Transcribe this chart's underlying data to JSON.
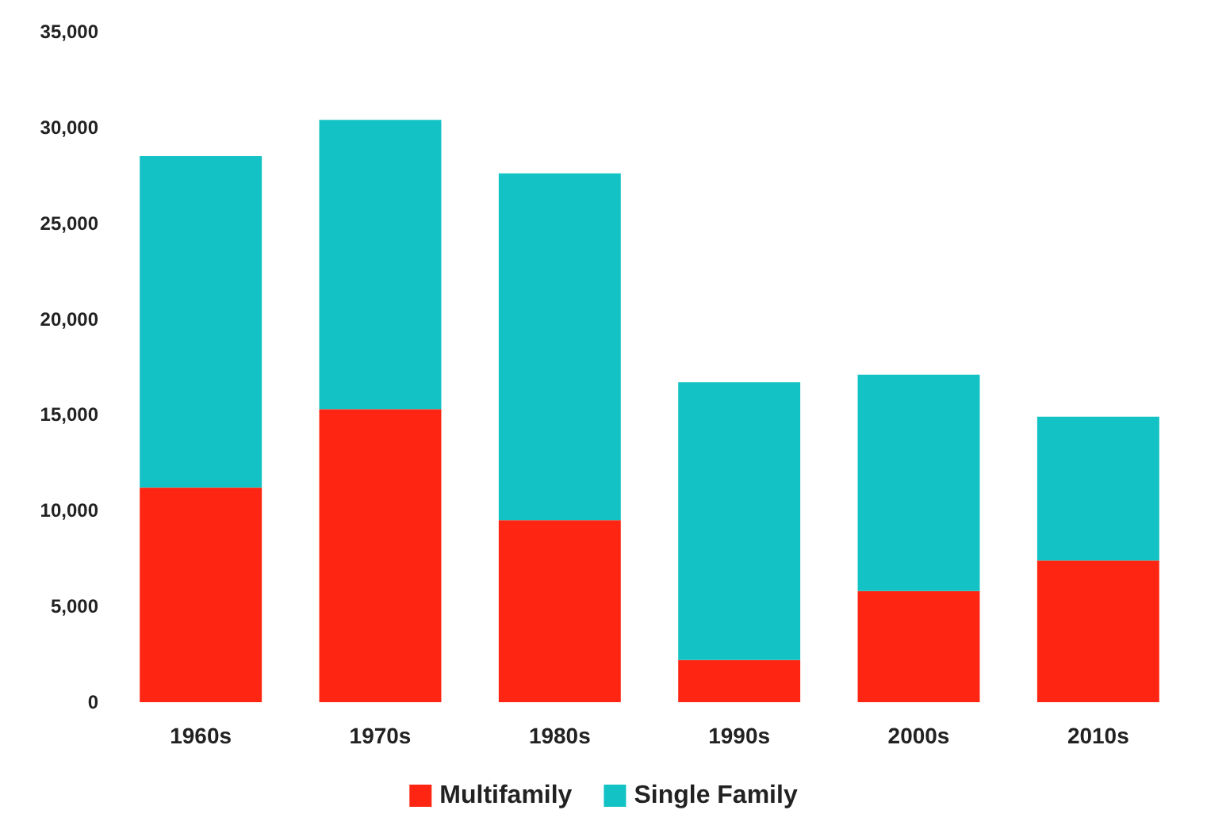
{
  "chart_data": {
    "type": "bar",
    "stacked": true,
    "categories": [
      "1960s",
      "1970s",
      "1980s",
      "1990s",
      "2000s",
      "2010s"
    ],
    "series": [
      {
        "name": "Multifamily",
        "color": "#fe2612",
        "values": [
          11200,
          15300,
          9500,
          2200,
          5800,
          7400
        ]
      },
      {
        "name": "Single Family",
        "color": "#12c2c4",
        "values": [
          17300,
          15100,
          18100,
          14500,
          11300,
          7500
        ]
      }
    ],
    "ylim": [
      0,
      35000
    ],
    "yticks": [
      {
        "value": 0,
        "label": "0"
      },
      {
        "value": 5000,
        "label": "5,000"
      },
      {
        "value": 10000,
        "label": "10,000"
      },
      {
        "value": 15000,
        "label": "15,000"
      },
      {
        "value": 20000,
        "label": "20,000"
      },
      {
        "value": 25000,
        "label": "25,000"
      },
      {
        "value": 30000,
        "label": "30,000"
      },
      {
        "value": 35000,
        "label": "35,000"
      }
    ],
    "grid": false,
    "legend": "bottom"
  }
}
